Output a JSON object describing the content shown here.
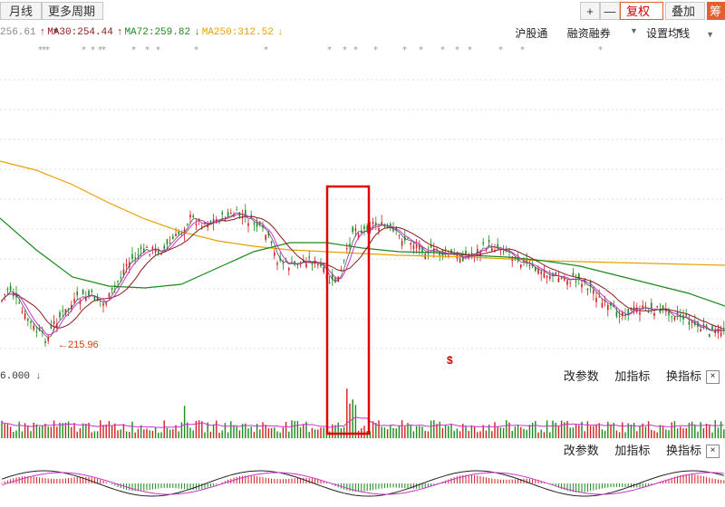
{
  "toolbar": {
    "left": [
      "月线",
      "更多周期"
    ],
    "plus": "+",
    "minus": "—",
    "fuquan": "复权",
    "diejia": "叠加",
    "chou": "筹"
  },
  "ma": {
    "ma_prefix": "256.61",
    "ma30": "MA30:254.44",
    "ma72": "MA72:259.82",
    "ma250": "MA250:312.52",
    "up_arrow": "↑",
    "down_arrow": "↓"
  },
  "links": [
    "沪股通",
    "融资融券",
    "设置均线"
  ],
  "price_panel": {
    "low_label": "215.96",
    "marker_label": "$",
    "colors": {
      "up": "#d02020",
      "down": "#1a8a1a",
      "ma_short": "#cc33cc",
      "ma30": "#8b1a1a",
      "ma72": "#1a8a1a",
      "ma250": "#e8a000"
    }
  },
  "volume_panel": {
    "value": "6.000",
    "actions": [
      "改参数",
      "加指标",
      "换指标"
    ],
    "close": "×"
  },
  "macd_panel": {
    "actions": [
      "改参数",
      "加指标",
      "换指标"
    ],
    "close": "×"
  }
}
